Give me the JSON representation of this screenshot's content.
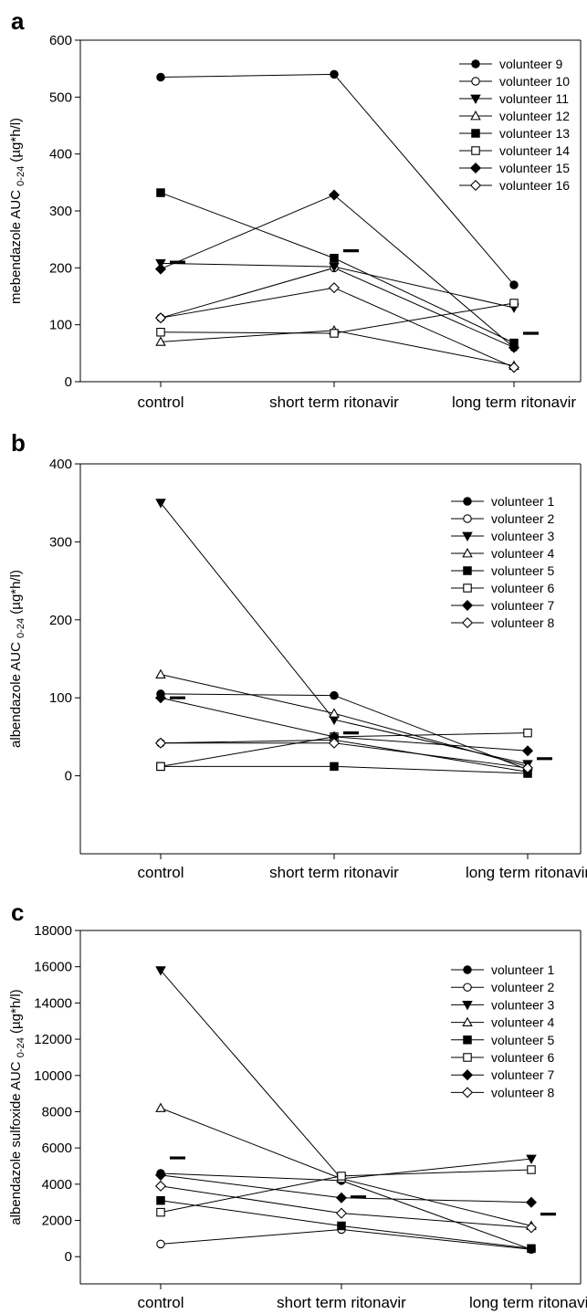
{
  "chart_data": [
    {
      "type": "line",
      "panel_label": "a",
      "ylabel": {
        "main": "mebendazole AUC",
        "sub": "0-24",
        "unit": "(µg*h/l)"
      },
      "categories": [
        "control",
        "short term ritonavir",
        "long term ritonavir"
      ],
      "ylim": [
        0,
        600
      ],
      "yticks": [
        "0",
        "100",
        "200",
        "300",
        "400",
        "500",
        "600"
      ],
      "legend_position": "top-right",
      "series": [
        {
          "name": "volunteer 9",
          "marker": "circle-filled",
          "values": [
            535,
            540,
            170
          ]
        },
        {
          "name": "volunteer 10",
          "marker": "circle-open",
          "values": [
            112,
            200,
            60
          ]
        },
        {
          "name": "volunteer 11",
          "marker": "triangle-down-filled",
          "values": [
            208,
            202,
            130
          ]
        },
        {
          "name": "volunteer 12",
          "marker": "triangle-up-open",
          "values": [
            70,
            90,
            28
          ]
        },
        {
          "name": "volunteer 13",
          "marker": "square-filled",
          "values": [
            332,
            217,
            68
          ]
        },
        {
          "name": "volunteer 14",
          "marker": "square-open",
          "values": [
            87,
            85,
            138
          ]
        },
        {
          "name": "volunteer 15",
          "marker": "diamond-filled",
          "values": [
            198,
            328,
            60
          ]
        },
        {
          "name": "volunteer 16",
          "marker": "diamond-open",
          "values": [
            112,
            165,
            25
          ]
        }
      ],
      "means": [
        210,
        230,
        85
      ]
    },
    {
      "type": "line",
      "panel_label": "b",
      "ylabel": {
        "main": "albendazole AUC",
        "sub": "0-24",
        "unit": "(µg*h/l)"
      },
      "categories": [
        "control",
        "short term ritonavir",
        "long term ritonavir"
      ],
      "ylim": [
        -100,
        400
      ],
      "yticks": [
        "0",
        "100",
        "200",
        "300",
        "400"
      ],
      "legend_position": "top-right",
      "series": [
        {
          "name": "volunteer 1",
          "marker": "circle-filled",
          "values": [
            105,
            103,
            8
          ]
        },
        {
          "name": "volunteer 2",
          "marker": "circle-open",
          "values": [
            42,
            46,
            5
          ]
        },
        {
          "name": "volunteer 3",
          "marker": "triangle-down-filled",
          "values": [
            350,
            72,
            15
          ]
        },
        {
          "name": "volunteer 4",
          "marker": "triangle-up-open",
          "values": [
            130,
            80,
            12
          ]
        },
        {
          "name": "volunteer 5",
          "marker": "square-filled",
          "values": [
            12,
            12,
            3
          ]
        },
        {
          "name": "volunteer 6",
          "marker": "square-open",
          "values": [
            12,
            50,
            55
          ]
        },
        {
          "name": "volunteer 7",
          "marker": "diamond-filled",
          "values": [
            100,
            50,
            32
          ]
        },
        {
          "name": "volunteer 8",
          "marker": "diamond-open",
          "values": [
            42,
            42,
            10
          ]
        }
      ],
      "means": [
        100,
        55,
        22
      ]
    },
    {
      "type": "line",
      "panel_label": "c",
      "ylabel": {
        "main": "albendazole sulfoxide AUC",
        "sub": "0-24",
        "unit": "(µg*h/l)"
      },
      "categories": [
        "control",
        "short term ritonavir",
        "long term ritonavir"
      ],
      "ylim": [
        -1500,
        18000
      ],
      "yticks": [
        "0",
        "2000",
        "4000",
        "6000",
        "8000",
        "10000",
        "12000",
        "14000",
        "16000",
        "18000"
      ],
      "legend_position": "top-right",
      "series": [
        {
          "name": "volunteer 1",
          "marker": "circle-filled",
          "values": [
            4600,
            4200,
            400
          ]
        },
        {
          "name": "volunteer 2",
          "marker": "circle-open",
          "values": [
            700,
            1500,
            400
          ]
        },
        {
          "name": "volunteer 3",
          "marker": "triangle-down-filled",
          "values": [
            15800,
            4300,
            5400
          ]
        },
        {
          "name": "volunteer 4",
          "marker": "triangle-up-open",
          "values": [
            8200,
            4300,
            1700
          ]
        },
        {
          "name": "volunteer 5",
          "marker": "square-filled",
          "values": [
            3100,
            1700,
            450
          ]
        },
        {
          "name": "volunteer 6",
          "marker": "square-open",
          "values": [
            2450,
            4450,
            4800
          ]
        },
        {
          "name": "volunteer 7",
          "marker": "diamond-filled",
          "values": [
            4500,
            3250,
            3000
          ]
        },
        {
          "name": "volunteer 8",
          "marker": "diamond-open",
          "values": [
            3900,
            2400,
            1600
          ]
        }
      ],
      "means": [
        5450,
        3300,
        2350
      ]
    }
  ]
}
